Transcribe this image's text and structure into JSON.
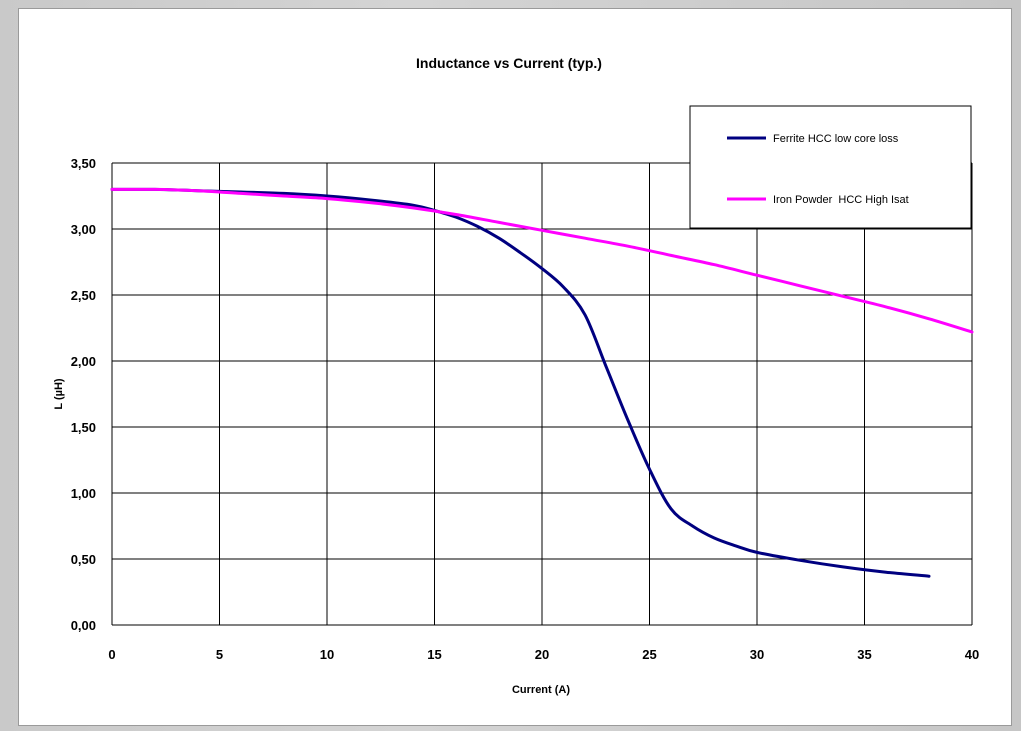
{
  "chart_data": {
    "type": "line",
    "title": "Inductance vs Current (typ.)",
    "xlabel": "Current (A)",
    "ylabel": "L (µH)",
    "xlim": [
      0,
      40
    ],
    "ylim": [
      0,
      3.5
    ],
    "x_ticks": [
      "0",
      "5",
      "10",
      "15",
      "20",
      "25",
      "30",
      "35",
      "40"
    ],
    "y_ticks": [
      "0,00",
      "0,50",
      "1,00",
      "1,50",
      "2,00",
      "2,50",
      "3,00",
      "3,50"
    ],
    "grid": true,
    "legend_position": "top-right",
    "series": [
      {
        "name": "Ferrite HCC low core loss",
        "color": "#000080",
        "x": [
          0,
          2,
          4,
          6,
          8,
          10,
          12,
          14,
          15,
          16,
          17,
          18,
          19,
          20,
          21,
          22,
          23,
          24,
          25,
          26,
          27,
          28,
          29,
          30,
          32,
          34,
          36,
          38
        ],
        "y": [
          3.3,
          3.3,
          3.29,
          3.28,
          3.27,
          3.25,
          3.22,
          3.18,
          3.14,
          3.09,
          3.02,
          2.93,
          2.82,
          2.7,
          2.56,
          2.35,
          1.95,
          1.55,
          1.18,
          0.88,
          0.75,
          0.66,
          0.6,
          0.55,
          0.49,
          0.44,
          0.4,
          0.37
        ]
      },
      {
        "name": "Iron Powder  HCC High Isat",
        "color": "#ff00ff",
        "x": [
          0,
          2,
          4,
          6,
          8,
          10,
          12,
          14,
          16,
          18,
          20,
          22,
          24,
          26,
          28,
          30,
          32,
          34,
          36,
          38,
          40
        ],
        "y": [
          3.3,
          3.3,
          3.29,
          3.27,
          3.25,
          3.23,
          3.2,
          3.16,
          3.11,
          3.05,
          2.99,
          2.93,
          2.87,
          2.8,
          2.73,
          2.65,
          2.57,
          2.49,
          2.41,
          2.32,
          2.22
        ]
      }
    ]
  }
}
